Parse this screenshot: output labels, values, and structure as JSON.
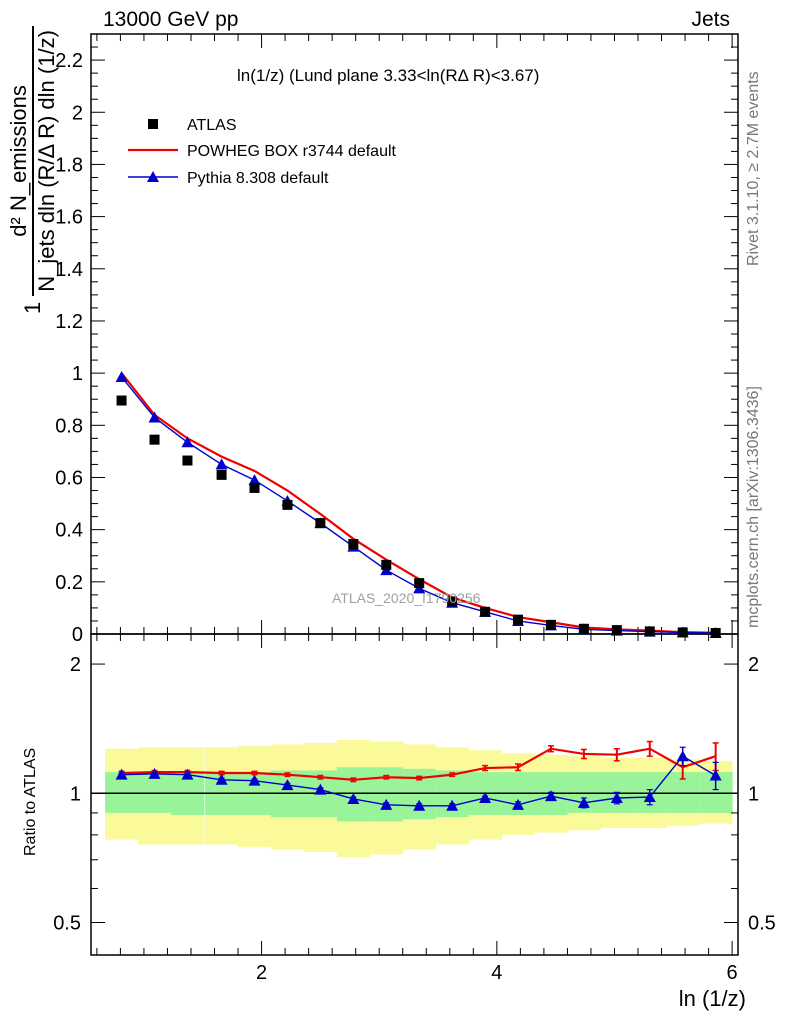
{
  "header": {
    "left": "13000 GeV pp",
    "right": "Jets"
  },
  "side_text": {
    "events": "Rivet 3.1.10, ≥ 2.7M events",
    "url": "mcplots.cern.ch [arXiv:1306.3436]"
  },
  "colors": {
    "data": "#000000",
    "powheg": "#ee0000",
    "pythia": "#0000cc",
    "band_inner": "#99f399",
    "band_outer": "#fafa9a"
  },
  "chart_data": [
    {
      "type": "line",
      "panel": "main",
      "title": "ln(1/z) (Lund plane 3.33<ln(RΔ R)<3.67)",
      "xlabel": "ln (1/z)",
      "ylabel_num": "d² N_emissions",
      "ylabel_den": "N_jets dln (R/Δ R) dln (1/z)",
      "watermark": "ATLAS_2020_I1790256",
      "xlim": [
        0.55,
        6.05
      ],
      "ylim": [
        0,
        2.3
      ],
      "xticks": [
        2,
        4,
        6
      ],
      "yticks": [
        0,
        0.2,
        0.4,
        0.6,
        0.8,
        1,
        1.2,
        1.4,
        1.6,
        1.8,
        2,
        2.2
      ],
      "legend_position": "top-left",
      "x": [
        0.81,
        1.09,
        1.37,
        1.66,
        1.94,
        2.22,
        2.5,
        2.78,
        3.06,
        3.34,
        3.62,
        3.9,
        4.18,
        4.46,
        4.74,
        5.02,
        5.3,
        5.58,
        5.86
      ],
      "series": [
        {
          "name": "ATLAS",
          "marker": "square",
          "values": [
            0.895,
            0.745,
            0.665,
            0.61,
            0.56,
            0.495,
            0.425,
            0.345,
            0.265,
            0.195,
            0.125,
            0.085,
            0.055,
            0.035,
            0.02,
            0.015,
            0.01,
            0.006,
            0.004
          ]
        },
        {
          "name": "POWHEG BOX r3744 default",
          "marker": "none",
          "values": [
            1.0,
            0.84,
            0.75,
            0.68,
            0.625,
            0.55,
            0.46,
            0.365,
            0.285,
            0.21,
            0.14,
            0.1,
            0.065,
            0.045,
            0.025,
            0.018,
            0.013,
            0.007,
            0.005
          ]
        },
        {
          "name": "Pythia 8.308 default",
          "marker": "triangle",
          "values": [
            0.985,
            0.83,
            0.735,
            0.65,
            0.59,
            0.51,
            0.425,
            0.335,
            0.245,
            0.175,
            0.12,
            0.085,
            0.05,
            0.033,
            0.018,
            0.013,
            0.009,
            0.006,
            0.004
          ]
        }
      ]
    },
    {
      "type": "line",
      "panel": "ratio",
      "ylabel": "Ratio to ATLAS",
      "xlabel": "ln (1/z)",
      "scale": "log",
      "xlim": [
        0.55,
        6.05
      ],
      "ylim": [
        0.42,
        2.35
      ],
      "xticks": [
        2,
        4,
        6
      ],
      "yticks": [
        0.5,
        1,
        2
      ],
      "x": [
        0.81,
        1.09,
        1.37,
        1.66,
        1.94,
        2.22,
        2.5,
        2.78,
        3.06,
        3.34,
        3.62,
        3.9,
        4.18,
        4.46,
        4.74,
        5.02,
        5.3,
        5.58,
        5.86
      ],
      "band_inner": [
        0.9,
        0.9,
        0.89,
        0.89,
        0.89,
        0.88,
        0.88,
        0.86,
        0.86,
        0.87,
        0.88,
        0.89,
        0.89,
        0.89,
        0.9,
        0.9,
        0.9,
        0.9,
        0.9
      ],
      "band_inner_upper": [
        1.12,
        1.12,
        1.12,
        1.12,
        1.12,
        1.13,
        1.13,
        1.15,
        1.15,
        1.14,
        1.13,
        1.12,
        1.12,
        1.12,
        1.12,
        1.12,
        1.12,
        1.12,
        1.12
      ],
      "band_outer_lower": [
        0.78,
        0.76,
        0.76,
        0.76,
        0.75,
        0.74,
        0.73,
        0.71,
        0.72,
        0.74,
        0.76,
        0.78,
        0.8,
        0.81,
        0.82,
        0.83,
        0.83,
        0.84,
        0.85
      ],
      "band_outer_upper": [
        1.27,
        1.28,
        1.28,
        1.28,
        1.29,
        1.3,
        1.31,
        1.33,
        1.32,
        1.3,
        1.28,
        1.26,
        1.24,
        1.23,
        1.22,
        1.21,
        1.21,
        1.2,
        1.19
      ],
      "series": [
        {
          "name": "POWHEG BOX r3744 default",
          "values": [
            1.115,
            1.12,
            1.12,
            1.115,
            1.115,
            1.105,
            1.09,
            1.075,
            1.09,
            1.085,
            1.105,
            1.145,
            1.15,
            1.27,
            1.235,
            1.23,
            1.27,
            1.15,
            1.22
          ],
          "err": [
            0.01,
            0.01,
            0.01,
            0.01,
            0.01,
            0.01,
            0.01,
            0.01,
            0.01,
            0.01,
            0.01,
            0.015,
            0.02,
            0.02,
            0.03,
            0.04,
            0.05,
            0.07,
            0.09
          ]
        },
        {
          "name": "Pythia 8.308 default",
          "values": [
            1.105,
            1.11,
            1.105,
            1.075,
            1.07,
            1.045,
            1.02,
            0.97,
            0.94,
            0.935,
            0.935,
            0.975,
            0.94,
            0.985,
            0.95,
            0.975,
            0.98,
            1.22,
            1.1
          ],
          "err": [
            0.01,
            0.01,
            0.01,
            0.01,
            0.01,
            0.01,
            0.01,
            0.01,
            0.01,
            0.01,
            0.01,
            0.01,
            0.015,
            0.02,
            0.025,
            0.03,
            0.04,
            0.06,
            0.08
          ]
        }
      ]
    }
  ]
}
